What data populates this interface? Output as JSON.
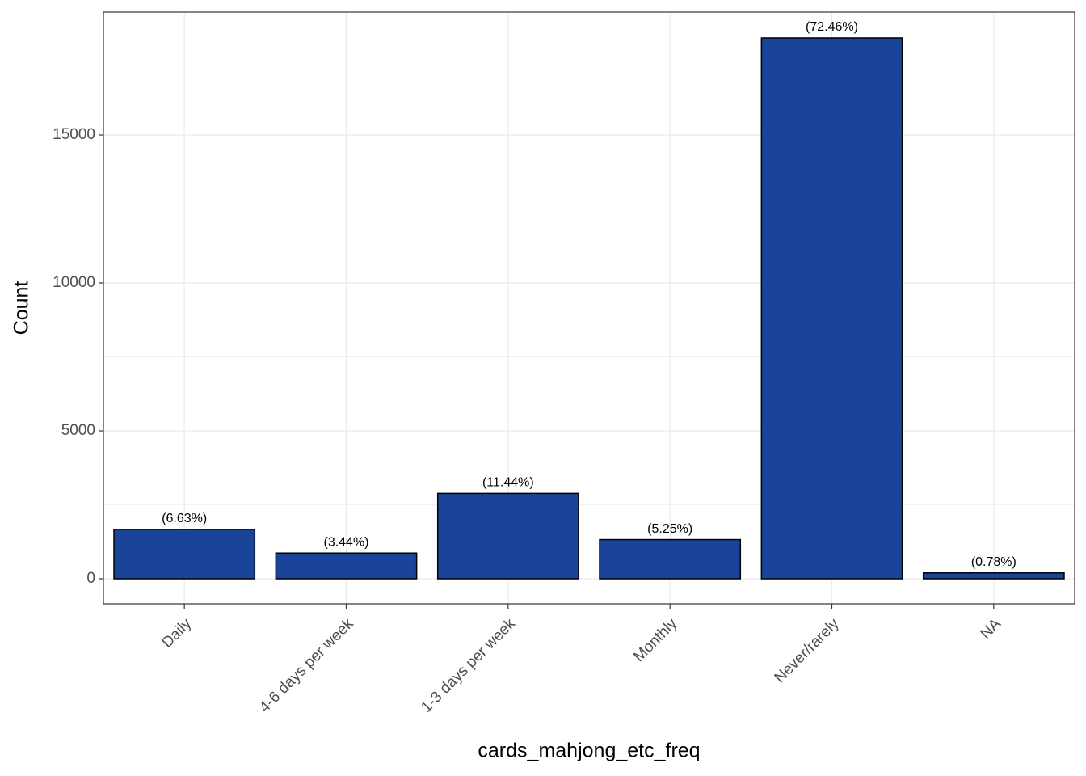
{
  "chart_data": {
    "type": "bar",
    "categories": [
      "Daily",
      "4-6 days per week",
      "1-3 days per week",
      "Monthly",
      "Never/rarely",
      "NA"
    ],
    "values": [
      1672,
      868,
      2886,
      1324,
      18279,
      197
    ],
    "annotations": [
      "(6.63%)",
      "(3.44%)",
      "(11.44%)",
      "(5.25%)",
      "(72.46%)",
      "(0.78%)"
    ],
    "color": "#1a4499",
    "x_label": "cards_mahjong_etc_freq",
    "y_label": "Count",
    "ylim": [
      -847,
      19153
    ],
    "yticks": [
      0,
      5000,
      10000,
      15000
    ],
    "minor_yticks": [
      2500,
      7500,
      12500,
      17500
    ],
    "grid": true
  }
}
